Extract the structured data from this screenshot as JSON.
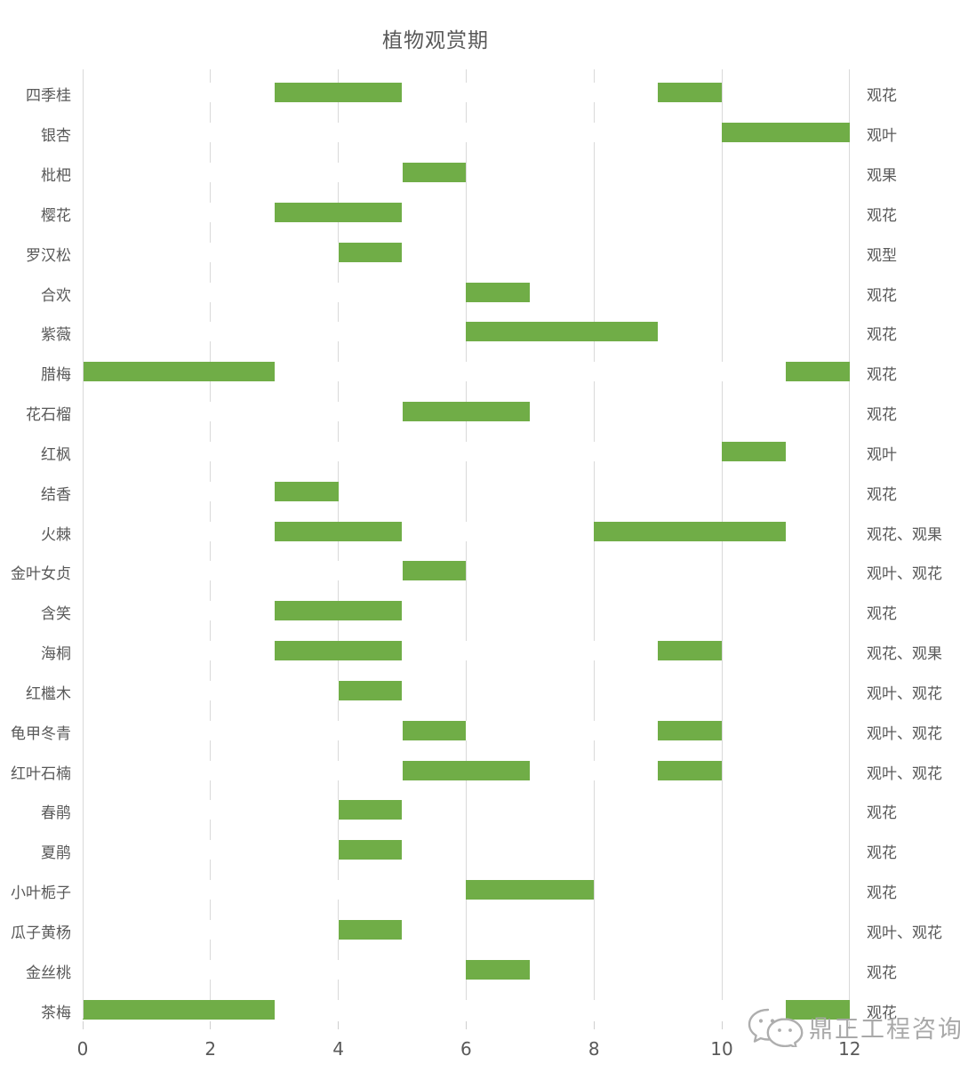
{
  "title": "植物观赏期",
  "watermark": {
    "icon": "wechat-icon",
    "text": "鼎正工程咨询"
  },
  "colors": {
    "bar": "#70ad47",
    "gridline": "#d9d9d9",
    "text": "#595959",
    "watermark": "#a9a9a9"
  },
  "chart_data": {
    "type": "bar",
    "subtype": "horizontal-gantt",
    "title": "植物观赏期",
    "xlabel": "",
    "ylabel": "",
    "xlim": [
      0,
      12
    ],
    "x_ticks": [
      0,
      2,
      4,
      6,
      8,
      10,
      12
    ],
    "grid": true,
    "legend": null,
    "unit": "month",
    "rows": [
      {
        "name": "四季桂",
        "periods": [
          [
            3,
            5
          ],
          [
            9,
            10
          ]
        ],
        "category": "观花"
      },
      {
        "name": "银杏",
        "periods": [
          [
            10,
            12
          ]
        ],
        "category": "观叶"
      },
      {
        "name": "枇杷",
        "periods": [
          [
            5,
            6
          ]
        ],
        "category": "观果"
      },
      {
        "name": "樱花",
        "periods": [
          [
            3,
            5
          ]
        ],
        "category": "观花"
      },
      {
        "name": "罗汉松",
        "periods": [
          [
            4,
            5
          ]
        ],
        "category": "观型"
      },
      {
        "name": "合欢",
        "periods": [
          [
            6,
            7
          ]
        ],
        "category": "观花"
      },
      {
        "name": "紫薇",
        "periods": [
          [
            6,
            9
          ]
        ],
        "category": "观花"
      },
      {
        "name": "腊梅",
        "periods": [
          [
            0,
            3
          ],
          [
            11,
            12
          ]
        ],
        "category": "观花"
      },
      {
        "name": "花石榴",
        "periods": [
          [
            5,
            7
          ]
        ],
        "category": "观花"
      },
      {
        "name": "红枫",
        "periods": [
          [
            10,
            11
          ]
        ],
        "category": "观叶"
      },
      {
        "name": "结香",
        "periods": [
          [
            3,
            4
          ]
        ],
        "category": "观花"
      },
      {
        "name": "火棘",
        "periods": [
          [
            3,
            5
          ],
          [
            8,
            11
          ]
        ],
        "category": "观花、观果"
      },
      {
        "name": "金叶女贞",
        "periods": [
          [
            5,
            6
          ]
        ],
        "category": "观叶、观花"
      },
      {
        "name": "含笑",
        "periods": [
          [
            3,
            5
          ]
        ],
        "category": "观花"
      },
      {
        "name": "海桐",
        "periods": [
          [
            3,
            5
          ],
          [
            9,
            10
          ]
        ],
        "category": "观花、观果"
      },
      {
        "name": "红檵木",
        "periods": [
          [
            4,
            5
          ]
        ],
        "category": "观叶、观花"
      },
      {
        "name": "龟甲冬青",
        "periods": [
          [
            5,
            6
          ],
          [
            9,
            10
          ]
        ],
        "category": "观叶、观花"
      },
      {
        "name": "红叶石楠",
        "periods": [
          [
            5,
            7
          ],
          [
            9,
            10
          ]
        ],
        "category": "观叶、观花"
      },
      {
        "name": "春鹃",
        "periods": [
          [
            4,
            5
          ]
        ],
        "category": "观花"
      },
      {
        "name": "夏鹃",
        "periods": [
          [
            4,
            5
          ]
        ],
        "category": "观花"
      },
      {
        "name": "小叶栀子",
        "periods": [
          [
            6,
            8
          ]
        ],
        "category": "观花"
      },
      {
        "name": "瓜子黄杨",
        "periods": [
          [
            4,
            5
          ]
        ],
        "category": "观叶、观花"
      },
      {
        "name": "金丝桃",
        "periods": [
          [
            6,
            7
          ]
        ],
        "category": "观花"
      },
      {
        "name": "茶梅",
        "periods": [
          [
            0,
            3
          ],
          [
            11,
            12
          ]
        ],
        "category": "观花"
      }
    ]
  }
}
